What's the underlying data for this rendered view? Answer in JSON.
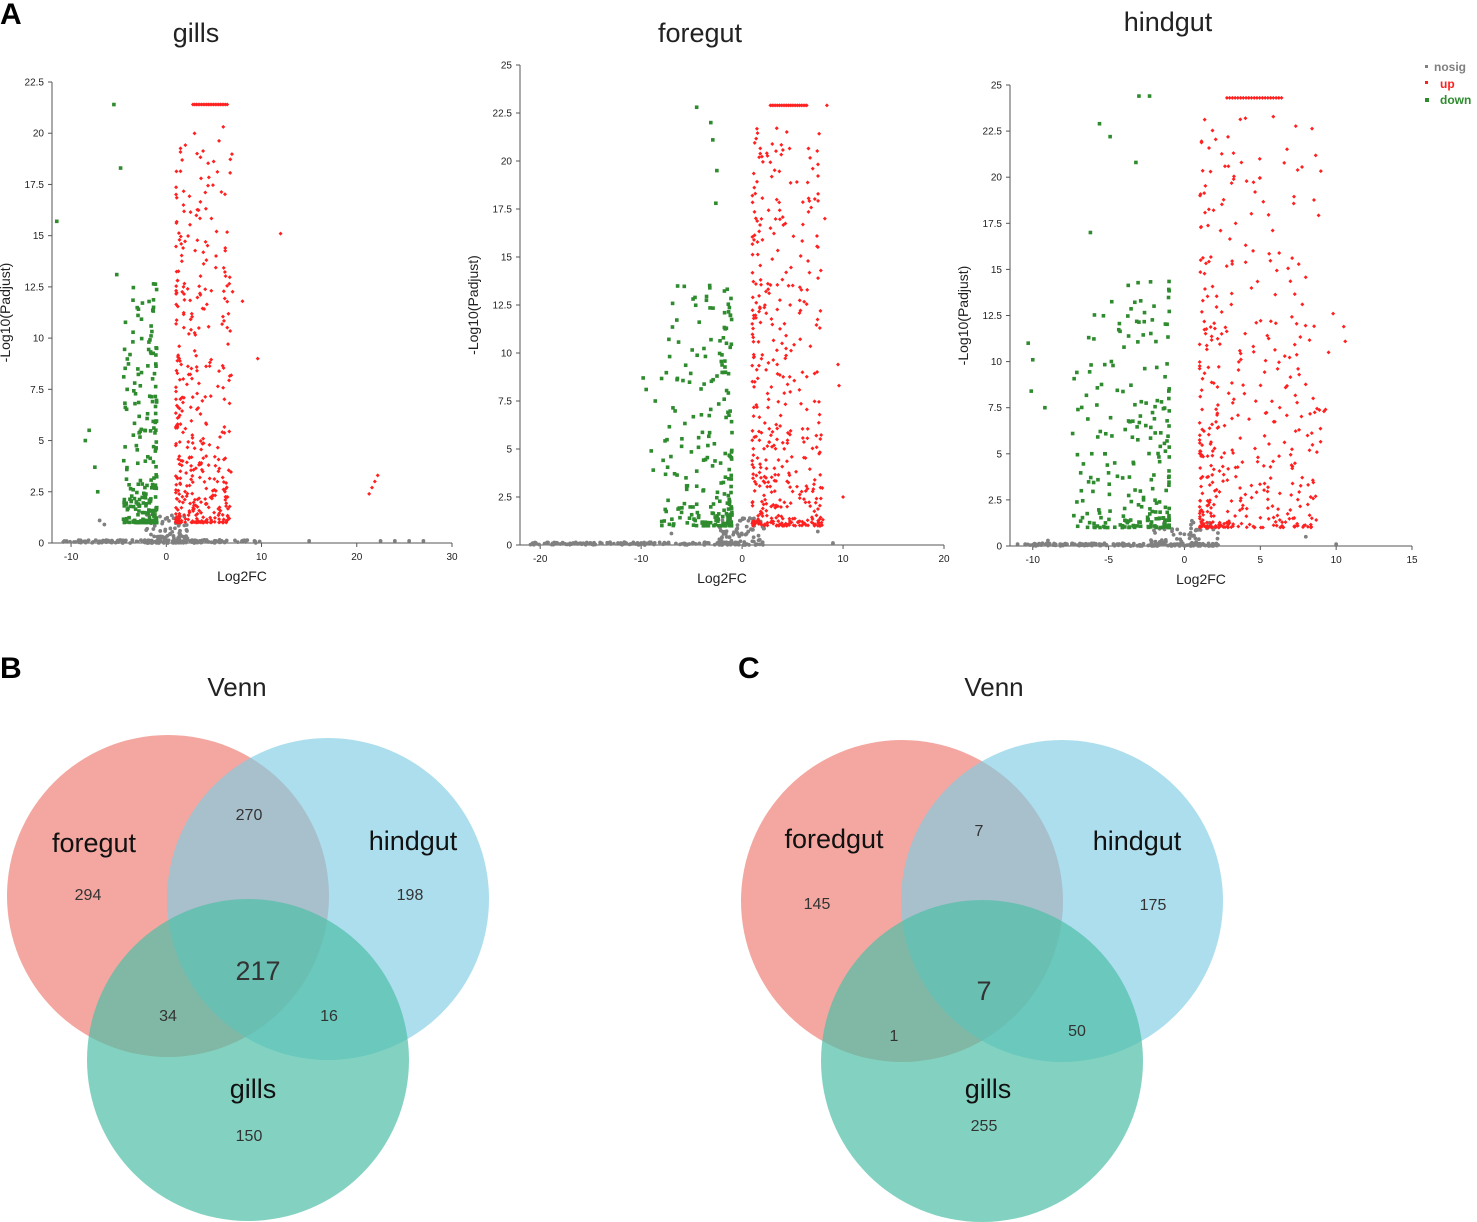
{
  "panels": {
    "a": "A",
    "b": "B",
    "c": "C"
  },
  "colors": {
    "nosig": "#808080",
    "up": "#ff2020",
    "down": "#2e8b2e",
    "foregut_fill": "#ee8277",
    "hindgut_fill": "#7fcde4",
    "gills_fill": "#4fbfa6"
  },
  "legend": [
    {
      "key": "nosig",
      "label": "nosig"
    },
    {
      "key": "up",
      "label": "up"
    },
    {
      "key": "down",
      "label": "down"
    }
  ],
  "chart_data": [
    {
      "type": "scatter",
      "title": "gills",
      "xlabel": "Log2FC",
      "ylabel": "-Log10(Padjust)",
      "xlim": [
        -12,
        30
      ],
      "ylim": [
        0,
        22.5
      ],
      "xticks": [
        "-10",
        "0",
        "10",
        "20",
        "30"
      ],
      "xtick_values": [
        -10,
        0,
        10,
        20,
        30
      ],
      "yticks": [
        "0",
        "2.5",
        "5",
        "7.5",
        "10",
        "12.5",
        "15",
        "17.5",
        "20",
        "22.5"
      ],
      "ytick_values": [
        0,
        2.5,
        5,
        7.5,
        10,
        12.5,
        15,
        17.5,
        20,
        22.5
      ],
      "up_band": [
        1,
        7
      ],
      "down_band": [
        -4.5,
        -1
      ],
      "cap": 21.4,
      "extras": {
        "up": [
          [
            12,
            15.1
          ],
          [
            8,
            11.8
          ],
          [
            9.6,
            9
          ],
          [
            21.3,
            2.4
          ],
          [
            21.6,
            2.7
          ],
          [
            21.9,
            3
          ],
          [
            22.2,
            3.3
          ]
        ],
        "down": [
          [
            -11.5,
            15.7
          ],
          [
            -8.1,
            5.5
          ],
          [
            -8.5,
            5
          ],
          [
            -7.5,
            3.7
          ],
          [
            -7.2,
            2.5
          ],
          [
            -5.5,
            21.4
          ],
          [
            -5.2,
            13.1
          ],
          [
            -4.8,
            18.3
          ]
        ],
        "nosig": [
          [
            -7,
            1.1
          ],
          [
            -6.5,
            0.9
          ],
          [
            22.5,
            0.1
          ],
          [
            24,
            0.1
          ],
          [
            25.5,
            0.1
          ],
          [
            27,
            0.1
          ],
          [
            15,
            0.1
          ],
          [
            -9.5,
            0.05
          ]
        ]
      }
    },
    {
      "type": "scatter",
      "title": "foregut",
      "xlabel": "Log2FC",
      "ylabel": "-Log10(Padjust)",
      "xlim": [
        -22,
        20
      ],
      "ylim": [
        0,
        25
      ],
      "xticks": [
        "-20",
        "-10",
        "0",
        "10",
        "20"
      ],
      "xtick_values": [
        -20,
        -10,
        0,
        10,
        20
      ],
      "yticks": [
        "0",
        "2.5",
        "5",
        "7.5",
        "10",
        "12.5",
        "15",
        "17.5",
        "20",
        "22.5",
        "25"
      ],
      "ytick_values": [
        0,
        2.5,
        5,
        7.5,
        10,
        12.5,
        15,
        17.5,
        20,
        22.5,
        25
      ],
      "up_band": [
        1,
        8
      ],
      "down_band": [
        -8,
        -1
      ],
      "cap": 22.9,
      "extras": {
        "up": [
          [
            8.4,
            22.9
          ],
          [
            7,
            19.6
          ],
          [
            8.2,
            17
          ],
          [
            7.8,
            14.3
          ],
          [
            7.7,
            11.3
          ],
          [
            9.5,
            9.4
          ],
          [
            9.6,
            8.3
          ],
          [
            10,
            2.5
          ]
        ],
        "down": [
          [
            -9.8,
            8.7
          ],
          [
            -9.5,
            8.1
          ],
          [
            -8.6,
            7.5
          ],
          [
            -4.5,
            22.8
          ],
          [
            -3.1,
            22
          ],
          [
            -2.9,
            21.1
          ],
          [
            -2.5,
            19.5
          ],
          [
            -2.6,
            17.8
          ],
          [
            -9,
            4.9
          ],
          [
            -8.8,
            3.9
          ]
        ],
        "nosig": [
          [
            -11.5,
            0.1
          ],
          [
            -10,
            0.1
          ],
          [
            -13,
            0.05
          ],
          [
            -7,
            0.6
          ],
          [
            9,
            0.1
          ],
          [
            7.5,
            0.7
          ]
        ]
      }
    },
    {
      "type": "scatter",
      "title": "hindgut",
      "xlabel": "Log2FC",
      "ylabel": "-Log10(Padjust)",
      "xlim": [
        -11.5,
        15
      ],
      "ylim": [
        0,
        25
      ],
      "xticks": [
        "-10",
        "-5",
        "0",
        "5",
        "10",
        "15"
      ],
      "xtick_values": [
        -10,
        -5,
        0,
        5,
        10,
        15
      ],
      "yticks": [
        "0",
        "2.5",
        "5",
        "7.5",
        "10",
        "12.5",
        "15",
        "17.5",
        "20",
        "22.5",
        "25"
      ],
      "ytick_values": [
        0,
        2.5,
        5,
        7.5,
        10,
        12.5,
        15,
        17.5,
        20,
        22.5,
        25
      ],
      "up_band": [
        1,
        9
      ],
      "down_band": [
        -7.5,
        -1
      ],
      "cap": 24.3,
      "extras": {
        "up": [
          [
            10.5,
            11.9
          ],
          [
            10.6,
            11.1
          ],
          [
            9.2,
            7.3
          ],
          [
            9.3,
            7.4
          ],
          [
            9.5,
            10.5
          ],
          [
            9.8,
            12.6
          ]
        ],
        "down": [
          [
            -10.3,
            11
          ],
          [
            -10,
            10.1
          ],
          [
            -10.1,
            8.4
          ],
          [
            -9.2,
            7.5
          ],
          [
            -3,
            24.4
          ],
          [
            -2.3,
            24.4
          ],
          [
            -5.6,
            22.9
          ],
          [
            -4.9,
            22.2
          ],
          [
            -3.2,
            20.8
          ],
          [
            -6.2,
            17
          ]
        ],
        "nosig": [
          [
            -11,
            0.1
          ],
          [
            -10.5,
            0.1
          ],
          [
            -9,
            0.3
          ],
          [
            8,
            0.5
          ],
          [
            10,
            0.1
          ]
        ]
      }
    }
  ],
  "venns": [
    {
      "title": "Venn",
      "sets": {
        "left": "foregut",
        "right": "hindgut",
        "bottom": "gills"
      },
      "counts": {
        "left_only": "294",
        "right_only": "198",
        "bottom_only": "150",
        "left_right": "270",
        "left_bottom": "34",
        "right_bottom": "16",
        "all": "217"
      }
    },
    {
      "title": "Venn",
      "sets": {
        "left": "foredgut",
        "right": "hindgut",
        "bottom": "gills"
      },
      "counts": {
        "left_only": "145",
        "right_only": "175",
        "bottom_only": "255",
        "left_right": "7",
        "left_bottom": "1",
        "right_bottom": "50",
        "all": "7"
      }
    }
  ]
}
